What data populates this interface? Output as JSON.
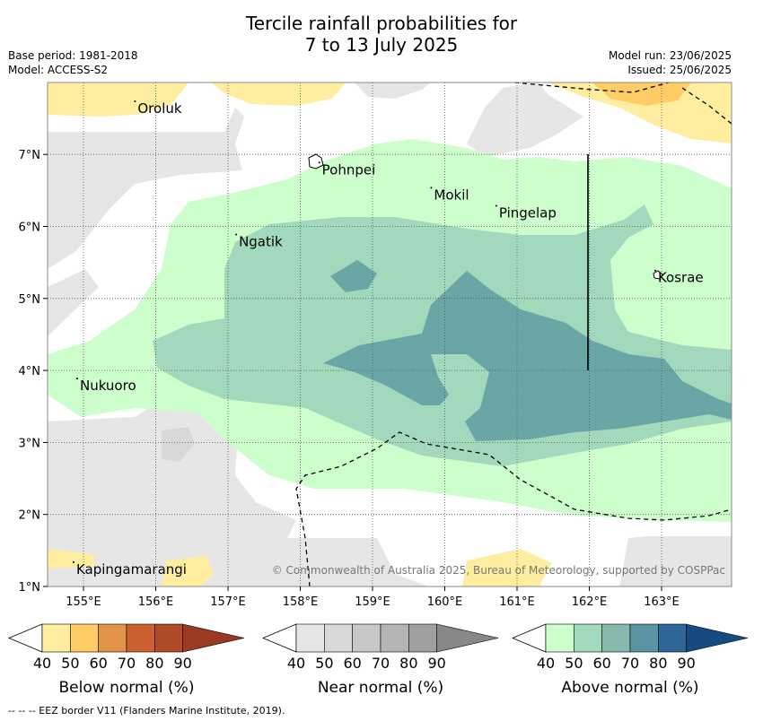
{
  "title_line1": "Tercile rainfall probabilities for",
  "title_line2": "7 to 13 July 2025",
  "meta_left": {
    "base_period": "Base period: 1981-2018",
    "model": "Model: ACCESS-S2"
  },
  "meta_right": {
    "model_run": "Model run: 23/06/2025",
    "issued": "Issued: 25/06/2025"
  },
  "map": {
    "lon_ticks": [
      "155°E",
      "156°E",
      "157°E",
      "158°E",
      "159°E",
      "160°E",
      "161°E",
      "162°E",
      "163°E"
    ],
    "lat_ticks": [
      "7°N",
      "6°N",
      "5°N",
      "4°N",
      "3°N",
      "2°N",
      "1°N"
    ],
    "places": [
      {
        "name": "Oroluk",
        "lon": 155.75,
        "lat": 7.65
      },
      {
        "name": "Pohnpei",
        "lon": 158.3,
        "lat": 6.8
      },
      {
        "name": "Mokil",
        "lon": 159.85,
        "lat": 6.45
      },
      {
        "name": "Pingelap",
        "lon": 160.75,
        "lat": 6.2
      },
      {
        "name": "Ngatik",
        "lon": 157.15,
        "lat": 5.8
      },
      {
        "name": "Kosrae",
        "lon": 162.95,
        "lat": 5.3
      },
      {
        "name": "Nukuoro",
        "lon": 154.95,
        "lat": 3.8
      },
      {
        "name": "Kapingamarangi",
        "lon": 154.9,
        "lat": 1.25
      }
    ],
    "copyright": "© Commonwealth of Australia 2025, Bureau of Meteorology, supported by COSPPac"
  },
  "colorbars": [
    {
      "title": "Below normal (%)",
      "ticks": [
        "40",
        "50",
        "60",
        "70",
        "80",
        "90"
      ],
      "colors": [
        "#ffeea0",
        "#ffcc66",
        "#e09448",
        "#cc6030",
        "#b04a28",
        "#9a3a22"
      ]
    },
    {
      "title": "Near normal (%)",
      "ticks": [
        "40",
        "50",
        "60",
        "70",
        "80",
        "90"
      ],
      "colors": [
        "#e6e6e6",
        "#d8d8d8",
        "#c8c8c8",
        "#b4b4b4",
        "#a0a0a0",
        "#888888"
      ]
    },
    {
      "title": "Above normal (%)",
      "ticks": [
        "40",
        "50",
        "60",
        "70",
        "80",
        "90"
      ],
      "colors": [
        "#ccffcc",
        "#a2d8bc",
        "#86b8ac",
        "#5a94a2",
        "#2f6698",
        "#174a80"
      ]
    }
  ],
  "footnote": "--  --  -- EEZ border V11 (Flanders Marine Institute, 2019)."
}
